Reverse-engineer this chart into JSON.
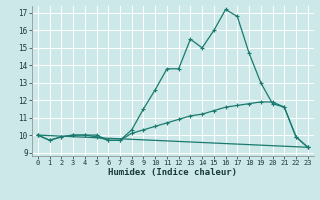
{
  "xlabel": "Humidex (Indice chaleur)",
  "xlim": [
    -0.5,
    23.5
  ],
  "ylim": [
    8.8,
    17.4
  ],
  "yticks": [
    9,
    10,
    11,
    12,
    13,
    14,
    15,
    16,
    17
  ],
  "xticks": [
    0,
    1,
    2,
    3,
    4,
    5,
    6,
    7,
    8,
    9,
    10,
    11,
    12,
    13,
    14,
    15,
    16,
    17,
    18,
    19,
    20,
    21,
    22,
    23
  ],
  "background_color": "#cce8e8",
  "grid_color": "#ffffff",
  "line_color": "#1a7a6e",
  "line1_x": [
    0,
    1,
    2,
    3,
    4,
    5,
    6,
    7,
    8,
    9,
    10,
    11,
    12,
    13,
    14,
    15,
    16,
    17,
    18,
    19,
    20,
    21,
    22,
    23
  ],
  "line1_y": [
    10.0,
    9.7,
    9.9,
    10.0,
    10.0,
    10.0,
    9.7,
    9.7,
    10.3,
    11.5,
    12.6,
    13.8,
    13.8,
    15.5,
    15.0,
    16.0,
    17.2,
    16.8,
    14.7,
    13.0,
    11.8,
    11.6,
    9.9,
    9.3
  ],
  "line2_x": [
    0,
    1,
    2,
    3,
    4,
    5,
    6,
    7,
    8,
    9,
    10,
    11,
    12,
    13,
    14,
    15,
    16,
    17,
    18,
    19,
    20,
    21,
    22,
    23
  ],
  "line2_y": [
    10.0,
    9.7,
    9.9,
    10.0,
    10.0,
    9.9,
    9.7,
    9.7,
    10.1,
    10.3,
    10.5,
    10.7,
    10.9,
    11.1,
    11.2,
    11.4,
    11.6,
    11.7,
    11.8,
    11.9,
    11.9,
    11.6,
    9.9,
    9.3
  ],
  "line3_x": [
    0,
    23
  ],
  "line3_y": [
    10.0,
    9.3
  ]
}
